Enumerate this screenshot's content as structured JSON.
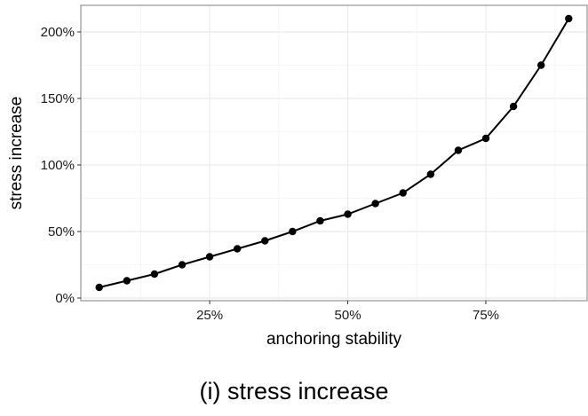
{
  "chart_data": {
    "type": "line",
    "xlabel": "anchoring stability",
    "ylabel": "stress increase",
    "x": [
      0.05,
      0.1,
      0.15,
      0.2,
      0.25,
      0.3,
      0.35,
      0.4,
      0.45,
      0.5,
      0.55,
      0.6,
      0.65,
      0.7,
      0.75,
      0.8,
      0.85,
      0.9
    ],
    "series": [
      {
        "values": [
          0.08,
          0.13,
          0.18,
          0.25,
          0.31,
          0.37,
          0.43,
          0.5,
          0.58,
          0.63,
          0.71,
          0.79,
          0.93,
          1.11,
          1.2,
          1.44,
          1.75,
          2.1
        ]
      }
    ],
    "xlim": [
      0.0167,
      0.9333
    ],
    "ylim": [
      -0.02,
      2.2
    ],
    "x_ticks": [
      0.25,
      0.5,
      0.75
    ],
    "x_tick_labels": [
      "25%",
      "50%",
      "75%"
    ],
    "y_ticks": [
      0,
      0.5,
      1.0,
      1.5,
      2.0
    ],
    "y_tick_labels": [
      "0%",
      "50%",
      "100%",
      "150%",
      "200%"
    ],
    "grid": true,
    "colors": {
      "line": "#000000",
      "point": "#000000",
      "grid_major": "#ebebeb",
      "grid_minor": "#f5f5f5",
      "panel_border": "#7f7f7f"
    }
  },
  "caption": "(i) stress increase"
}
